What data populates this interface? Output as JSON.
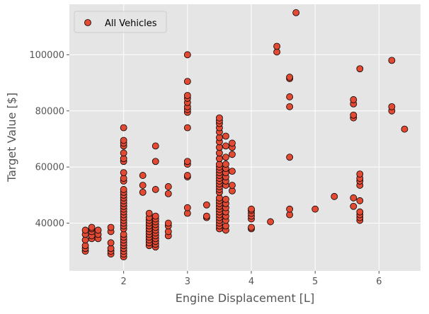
{
  "chart_data": {
    "type": "scatter",
    "title": "",
    "xlabel": "Engine Displacement [L]",
    "ylabel": "Target Value [$]",
    "xlim": [
      1.15,
      6.65
    ],
    "ylim": [
      23000,
      118000
    ],
    "xticks": [
      2,
      3,
      4,
      5,
      6
    ],
    "yticks": [
      40000,
      60000,
      80000,
      100000
    ],
    "grid": true,
    "legend": {
      "placement": "top-left"
    },
    "colors": {
      "background": "#e5e5e5",
      "grid": "#ffffff",
      "marker_fill": "#e24a33",
      "marker_edge": "#000000",
      "axis_text": "#555555"
    },
    "series": [
      {
        "name": "All Vehicles",
        "points": [
          [
            1.4,
            30000
          ],
          [
            1.4,
            31000
          ],
          [
            1.4,
            32000
          ],
          [
            1.4,
            34000
          ],
          [
            1.4,
            36000
          ],
          [
            1.4,
            37500
          ],
          [
            1.5,
            34500
          ],
          [
            1.5,
            35500
          ],
          [
            1.5,
            37000
          ],
          [
            1.5,
            38000
          ],
          [
            1.5,
            38500
          ],
          [
            1.6,
            34500
          ],
          [
            1.6,
            36000
          ],
          [
            1.6,
            37500
          ],
          [
            1.8,
            29000
          ],
          [
            1.8,
            30000
          ],
          [
            1.8,
            31000
          ],
          [
            1.8,
            33000
          ],
          [
            1.8,
            37000
          ],
          [
            1.8,
            38500
          ],
          [
            2.0,
            28000
          ],
          [
            2.0,
            29000
          ],
          [
            2.0,
            30000
          ],
          [
            2.0,
            31000
          ],
          [
            2.0,
            32000
          ],
          [
            2.0,
            33000
          ],
          [
            2.0,
            34000
          ],
          [
            2.0,
            35000
          ],
          [
            2.0,
            36000
          ],
          [
            2.0,
            38000
          ],
          [
            2.0,
            39000
          ],
          [
            2.0,
            40000
          ],
          [
            2.0,
            41000
          ],
          [
            2.0,
            42000
          ],
          [
            2.0,
            43000
          ],
          [
            2.0,
            44000
          ],
          [
            2.0,
            45000
          ],
          [
            2.0,
            46000
          ],
          [
            2.0,
            47000
          ],
          [
            2.0,
            48000
          ],
          [
            2.0,
            49000
          ],
          [
            2.0,
            50000
          ],
          [
            2.0,
            51000
          ],
          [
            2.0,
            52000
          ],
          [
            2.0,
            55000
          ],
          [
            2.0,
            56000
          ],
          [
            2.0,
            58000
          ],
          [
            2.0,
            62000
          ],
          [
            2.0,
            63000
          ],
          [
            2.0,
            65000
          ],
          [
            2.0,
            67500
          ],
          [
            2.0,
            68500
          ],
          [
            2.0,
            69500
          ],
          [
            2.0,
            74000
          ],
          [
            2.3,
            51000
          ],
          [
            2.3,
            53500
          ],
          [
            2.3,
            57000
          ],
          [
            2.4,
            32000
          ],
          [
            2.4,
            33000
          ],
          [
            2.4,
            34000
          ],
          [
            2.4,
            35000
          ],
          [
            2.4,
            36000
          ],
          [
            2.4,
            37000
          ],
          [
            2.4,
            38000
          ],
          [
            2.4,
            39000
          ],
          [
            2.4,
            40000
          ],
          [
            2.4,
            41000
          ],
          [
            2.4,
            42000
          ],
          [
            2.4,
            43500
          ],
          [
            2.5,
            31500
          ],
          [
            2.5,
            32500
          ],
          [
            2.5,
            33500
          ],
          [
            2.5,
            34500
          ],
          [
            2.5,
            35500
          ],
          [
            2.5,
            36500
          ],
          [
            2.5,
            37500
          ],
          [
            2.5,
            38500
          ],
          [
            2.5,
            39500
          ],
          [
            2.5,
            40500
          ],
          [
            2.5,
            41500
          ],
          [
            2.5,
            42500
          ],
          [
            2.5,
            52000
          ],
          [
            2.5,
            62000
          ],
          [
            2.5,
            67500
          ],
          [
            2.7,
            35500
          ],
          [
            2.7,
            37000
          ],
          [
            2.7,
            39000
          ],
          [
            2.7,
            40000
          ],
          [
            2.7,
            50500
          ],
          [
            2.7,
            53000
          ],
          [
            3.0,
            43500
          ],
          [
            3.0,
            45500
          ],
          [
            3.0,
            56500
          ],
          [
            3.0,
            57000
          ],
          [
            3.0,
            61000
          ],
          [
            3.0,
            62000
          ],
          [
            3.0,
            74000
          ],
          [
            3.0,
            79500
          ],
          [
            3.0,
            80500
          ],
          [
            3.0,
            81500
          ],
          [
            3.0,
            83000
          ],
          [
            3.0,
            84500
          ],
          [
            3.0,
            85500
          ],
          [
            3.0,
            90500
          ],
          [
            3.0,
            100000
          ],
          [
            3.3,
            42000
          ],
          [
            3.3,
            42500
          ],
          [
            3.3,
            46500
          ],
          [
            3.5,
            38000
          ],
          [
            3.5,
            39000
          ],
          [
            3.5,
            40000
          ],
          [
            3.5,
            41000
          ],
          [
            3.5,
            42000
          ],
          [
            3.5,
            43000
          ],
          [
            3.5,
            44000
          ],
          [
            3.5,
            45000
          ],
          [
            3.5,
            46000
          ],
          [
            3.5,
            47000
          ],
          [
            3.5,
            48000
          ],
          [
            3.5,
            49000
          ],
          [
            3.5,
            51000
          ],
          [
            3.5,
            52000
          ],
          [
            3.5,
            53000
          ],
          [
            3.5,
            54000
          ],
          [
            3.5,
            55000
          ],
          [
            3.5,
            56000
          ],
          [
            3.5,
            57000
          ],
          [
            3.5,
            58000
          ],
          [
            3.5,
            59000
          ],
          [
            3.5,
            60000
          ],
          [
            3.5,
            61000
          ],
          [
            3.5,
            63000
          ],
          [
            3.5,
            65000
          ],
          [
            3.5,
            67000
          ],
          [
            3.5,
            69000
          ],
          [
            3.5,
            70500
          ],
          [
            3.5,
            72500
          ],
          [
            3.5,
            74000
          ],
          [
            3.5,
            75500
          ],
          [
            3.5,
            76500
          ],
          [
            3.5,
            77500
          ],
          [
            3.6,
            37500
          ],
          [
            3.6,
            39000
          ],
          [
            3.6,
            41000
          ],
          [
            3.6,
            42500
          ],
          [
            3.6,
            44000
          ],
          [
            3.6,
            45500
          ],
          [
            3.6,
            47000
          ],
          [
            3.6,
            48500
          ],
          [
            3.6,
            53500
          ],
          [
            3.6,
            55000
          ],
          [
            3.6,
            56500
          ],
          [
            3.6,
            58000
          ],
          [
            3.6,
            59500
          ],
          [
            3.6,
            61000
          ],
          [
            3.6,
            63500
          ],
          [
            3.6,
            67500
          ],
          [
            3.6,
            71000
          ],
          [
            3.7,
            51500
          ],
          [
            3.7,
            53500
          ],
          [
            3.7,
            58500
          ],
          [
            3.7,
            64500
          ],
          [
            3.7,
            67000
          ],
          [
            3.7,
            68500
          ],
          [
            4.0,
            38000
          ],
          [
            4.0,
            38500
          ],
          [
            4.0,
            41500
          ],
          [
            4.0,
            42500
          ],
          [
            4.0,
            43500
          ],
          [
            4.0,
            44500
          ],
          [
            4.0,
            45000
          ],
          [
            4.3,
            40500
          ],
          [
            4.4,
            101000
          ],
          [
            4.4,
            103000
          ],
          [
            4.6,
            43000
          ],
          [
            4.6,
            45000
          ],
          [
            4.6,
            63500
          ],
          [
            4.6,
            81500
          ],
          [
            4.6,
            85000
          ],
          [
            4.6,
            91500
          ],
          [
            4.6,
            92000
          ],
          [
            4.7,
            115000
          ],
          [
            5.0,
            45000
          ],
          [
            5.3,
            49500
          ],
          [
            5.6,
            46000
          ],
          [
            5.6,
            49000
          ],
          [
            5.6,
            77500
          ],
          [
            5.6,
            78500
          ],
          [
            5.6,
            82500
          ],
          [
            5.6,
            84000
          ],
          [
            5.7,
            41000
          ],
          [
            5.7,
            42000
          ],
          [
            5.7,
            43000
          ],
          [
            5.7,
            44000
          ],
          [
            5.7,
            48000
          ],
          [
            5.7,
            53500
          ],
          [
            5.7,
            55000
          ],
          [
            5.7,
            56000
          ],
          [
            5.7,
            57500
          ],
          [
            5.7,
            95000
          ],
          [
            6.2,
            80000
          ],
          [
            6.2,
            81500
          ],
          [
            6.2,
            98000
          ],
          [
            6.4,
            73500
          ]
        ]
      }
    ]
  }
}
